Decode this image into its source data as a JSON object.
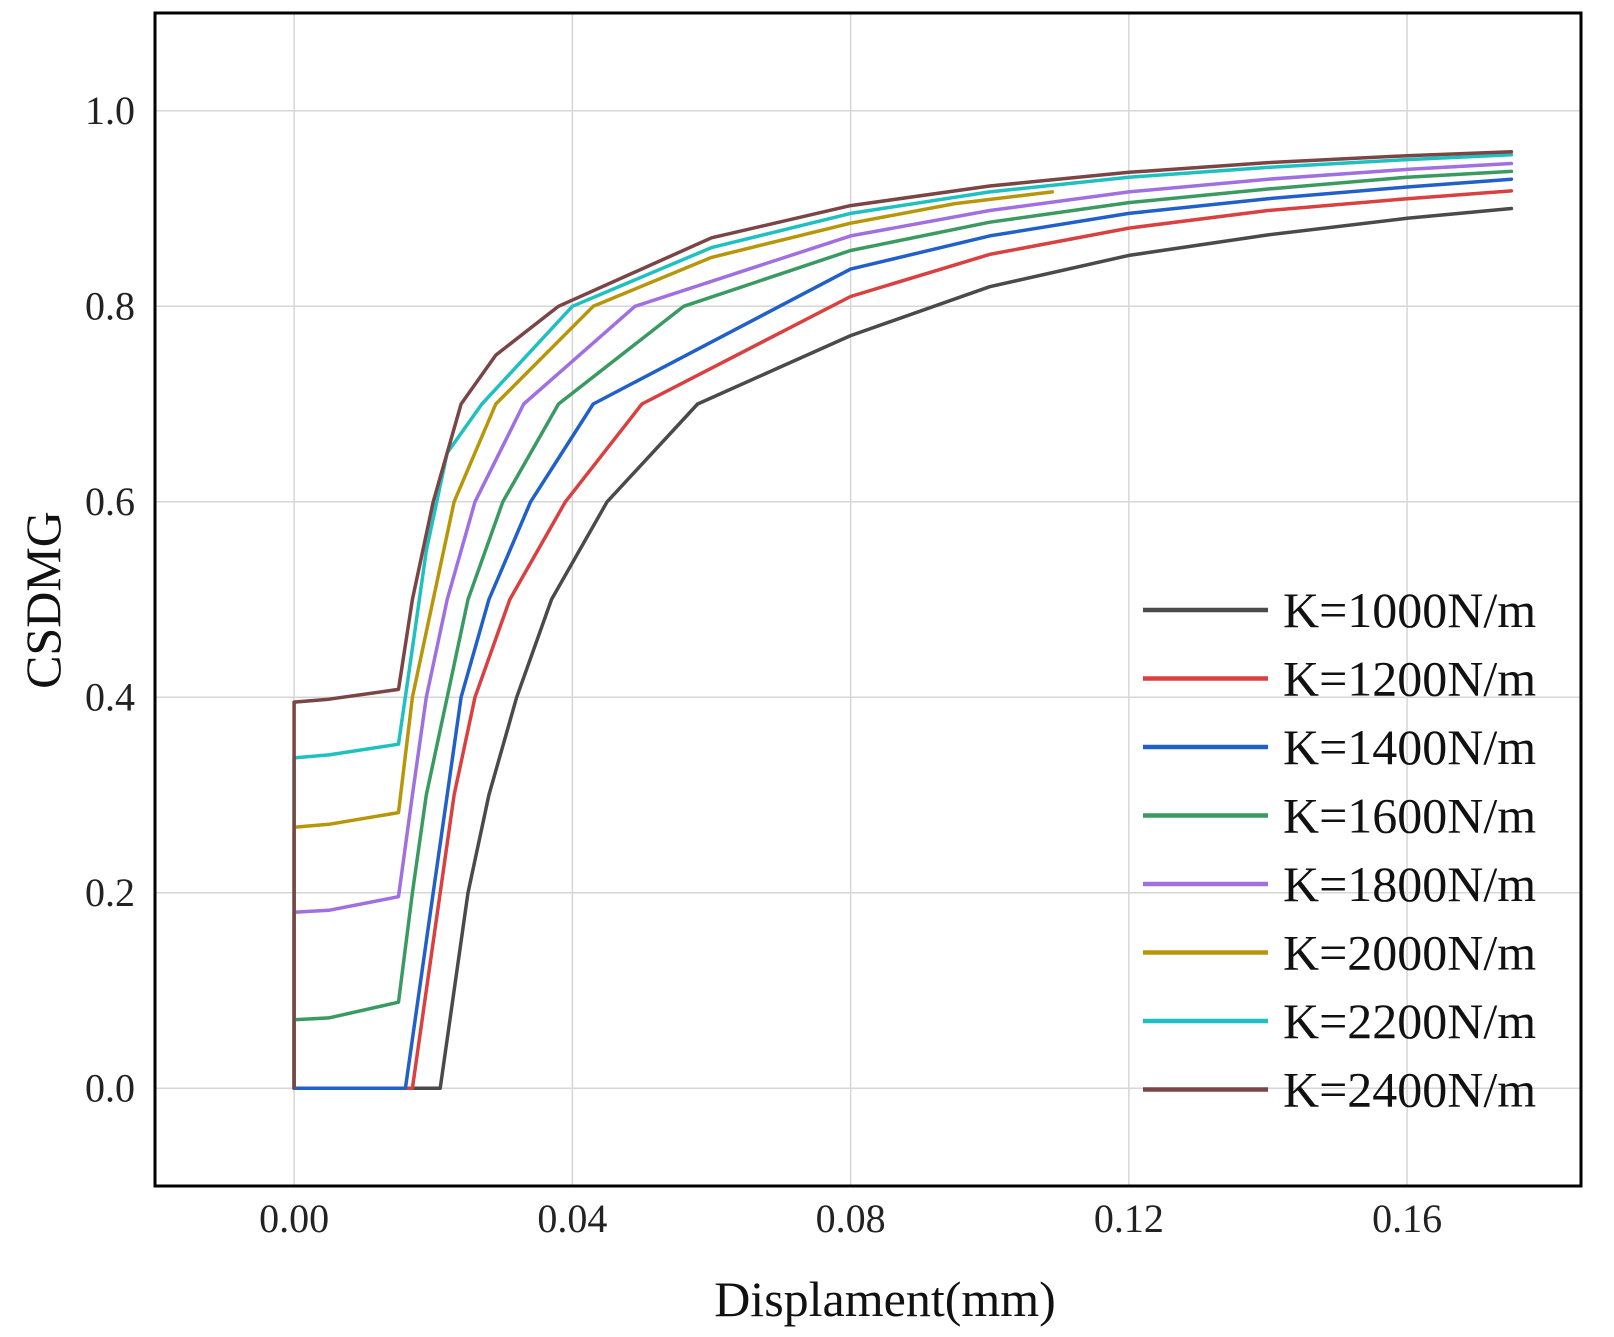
{
  "chart_data": {
    "type": "line",
    "title": "",
    "xlabel": "Displament(mm)",
    "ylabel": "CSDMG",
    "xlim": [
      -0.02,
      0.185
    ],
    "ylim": [
      -0.1,
      1.1
    ],
    "xticks": [
      0.0,
      0.04,
      0.08,
      0.12,
      0.16
    ],
    "xtick_labels": [
      "0.00",
      "0.04",
      "0.08",
      "0.12",
      "0.16"
    ],
    "yticks": [
      0.0,
      0.2,
      0.4,
      0.6,
      0.8,
      1.0
    ],
    "ytick_labels": [
      "0.0",
      "0.2",
      "0.4",
      "0.6",
      "0.8",
      "1.0"
    ],
    "grid": true,
    "legend_position": "bottom-right",
    "series": [
      {
        "name": "K=1000N/m",
        "color": "#4a4a4a",
        "points": [
          [
            0.0,
            0.0
          ],
          [
            0.021,
            0.0
          ],
          [
            0.023,
            0.1
          ],
          [
            0.025,
            0.2
          ],
          [
            0.028,
            0.3
          ],
          [
            0.032,
            0.4
          ],
          [
            0.037,
            0.5
          ],
          [
            0.045,
            0.6
          ],
          [
            0.058,
            0.7
          ],
          [
            0.08,
            0.77
          ],
          [
            0.1,
            0.82
          ],
          [
            0.12,
            0.852
          ],
          [
            0.14,
            0.873
          ],
          [
            0.16,
            0.89
          ],
          [
            0.175,
            0.9
          ]
        ]
      },
      {
        "name": "K=1200N/m",
        "color": "#d94040",
        "points": [
          [
            0.0,
            0.0
          ],
          [
            0.017,
            0.0
          ],
          [
            0.019,
            0.1
          ],
          [
            0.021,
            0.2
          ],
          [
            0.023,
            0.3
          ],
          [
            0.026,
            0.4
          ],
          [
            0.031,
            0.5
          ],
          [
            0.039,
            0.6
          ],
          [
            0.05,
            0.7
          ],
          [
            0.08,
            0.81
          ],
          [
            0.1,
            0.853
          ],
          [
            0.12,
            0.88
          ],
          [
            0.14,
            0.898
          ],
          [
            0.16,
            0.91
          ],
          [
            0.175,
            0.918
          ]
        ]
      },
      {
        "name": "K=1400N/m",
        "color": "#2060c8",
        "points": [
          [
            0.0,
            0.0
          ],
          [
            0.016,
            0.0
          ],
          [
            0.018,
            0.1
          ],
          [
            0.02,
            0.2
          ],
          [
            0.022,
            0.3
          ],
          [
            0.024,
            0.4
          ],
          [
            0.028,
            0.5
          ],
          [
            0.034,
            0.6
          ],
          [
            0.043,
            0.7
          ],
          [
            0.08,
            0.838
          ],
          [
            0.1,
            0.872
          ],
          [
            0.12,
            0.895
          ],
          [
            0.14,
            0.91
          ],
          [
            0.16,
            0.922
          ],
          [
            0.175,
            0.93
          ]
        ]
      },
      {
        "name": "K=1600N/m",
        "color": "#3a9a62",
        "points": [
          [
            0.0,
            0.07
          ],
          [
            0.005,
            0.072
          ],
          [
            0.015,
            0.088
          ],
          [
            0.017,
            0.2
          ],
          [
            0.019,
            0.3
          ],
          [
            0.022,
            0.4
          ],
          [
            0.025,
            0.5
          ],
          [
            0.03,
            0.6
          ],
          [
            0.038,
            0.7
          ],
          [
            0.056,
            0.8
          ],
          [
            0.08,
            0.857
          ],
          [
            0.1,
            0.886
          ],
          [
            0.12,
            0.906
          ],
          [
            0.14,
            0.92
          ],
          [
            0.16,
            0.932
          ],
          [
            0.175,
            0.938
          ]
        ]
      },
      {
        "name": "K=1800N/m",
        "color": "#a070e0",
        "points": [
          [
            0.0,
            0.18
          ],
          [
            0.005,
            0.182
          ],
          [
            0.015,
            0.196
          ],
          [
            0.017,
            0.3
          ],
          [
            0.019,
            0.4
          ],
          [
            0.022,
            0.5
          ],
          [
            0.026,
            0.6
          ],
          [
            0.033,
            0.7
          ],
          [
            0.049,
            0.8
          ],
          [
            0.08,
            0.872
          ],
          [
            0.1,
            0.898
          ],
          [
            0.12,
            0.917
          ],
          [
            0.14,
            0.93
          ],
          [
            0.16,
            0.94
          ],
          [
            0.175,
            0.946
          ]
        ]
      },
      {
        "name": "K=2000N/m",
        "color": "#b8960a",
        "points": [
          [
            0.0,
            0.267
          ],
          [
            0.005,
            0.27
          ],
          [
            0.015,
            0.282
          ],
          [
            0.017,
            0.4
          ],
          [
            0.02,
            0.5
          ],
          [
            0.023,
            0.6
          ],
          [
            0.029,
            0.7
          ],
          [
            0.043,
            0.8
          ],
          [
            0.06,
            0.85
          ],
          [
            0.08,
            0.885
          ],
          [
            0.095,
            0.905
          ],
          [
            0.109,
            0.917
          ]
        ]
      },
      {
        "name": "K=2200N/m",
        "color": "#20c0c0",
        "points": [
          [
            0.0,
            0.338
          ],
          [
            0.005,
            0.341
          ],
          [
            0.015,
            0.352
          ],
          [
            0.017,
            0.45
          ],
          [
            0.019,
            0.55
          ],
          [
            0.022,
            0.65
          ],
          [
            0.027,
            0.7
          ],
          [
            0.04,
            0.8
          ],
          [
            0.06,
            0.86
          ],
          [
            0.08,
            0.895
          ],
          [
            0.1,
            0.917
          ],
          [
            0.12,
            0.932
          ],
          [
            0.14,
            0.942
          ],
          [
            0.16,
            0.95
          ],
          [
            0.175,
            0.955
          ]
        ]
      },
      {
        "name": "K=2400N/m",
        "color": "#7a4545",
        "points": [
          [
            0.0,
            0.395
          ],
          [
            0.005,
            0.398
          ],
          [
            0.015,
            0.408
          ],
          [
            0.017,
            0.5
          ],
          [
            0.02,
            0.6
          ],
          [
            0.024,
            0.7
          ],
          [
            0.029,
            0.75
          ],
          [
            0.038,
            0.8
          ],
          [
            0.06,
            0.87
          ],
          [
            0.08,
            0.903
          ],
          [
            0.1,
            0.923
          ],
          [
            0.12,
            0.937
          ],
          [
            0.14,
            0.947
          ],
          [
            0.16,
            0.954
          ],
          [
            0.175,
            0.958
          ]
        ]
      }
    ]
  }
}
